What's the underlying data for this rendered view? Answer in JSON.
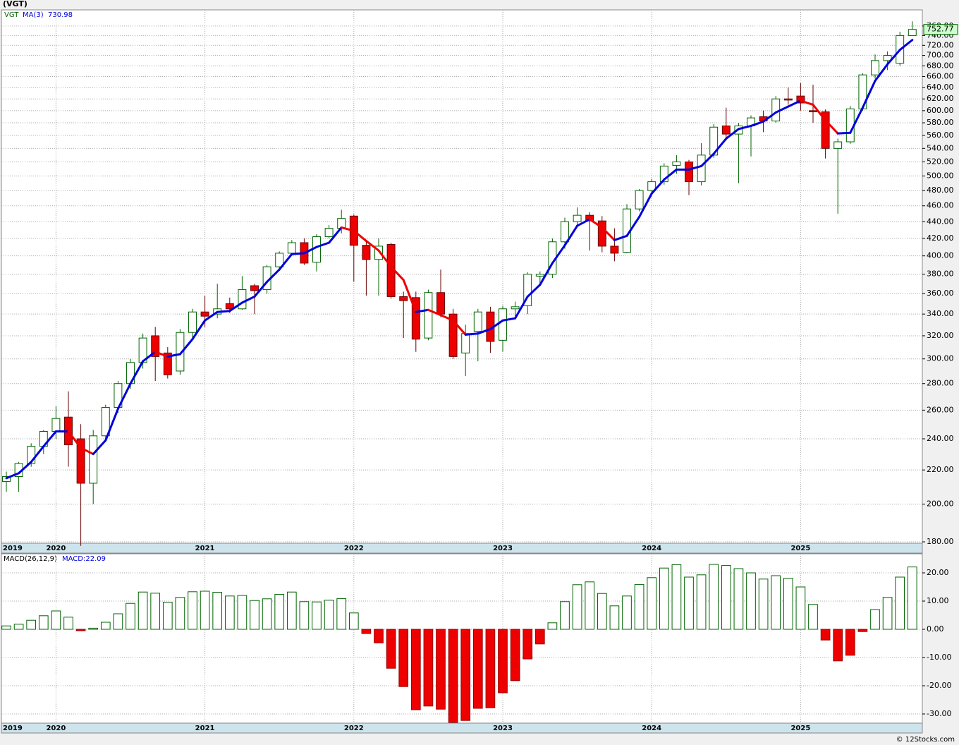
{
  "footer": "© 12Stocks.com",
  "chart_data": [
    {
      "type": "candlestick",
      "title": "(VGT)",
      "ticker": "VGT",
      "log_scale": true,
      "grid": true,
      "up_color": "#006400",
      "down_color": "#ee0000",
      "categories": [
        "2019",
        null,
        null,
        null,
        "2020",
        null,
        null,
        null,
        null,
        null,
        null,
        null,
        null,
        null,
        null,
        null,
        "2021",
        null,
        null,
        null,
        null,
        null,
        null,
        null,
        null,
        null,
        null,
        null,
        "2022",
        null,
        null,
        null,
        null,
        null,
        null,
        null,
        null,
        null,
        null,
        null,
        "2023",
        null,
        null,
        null,
        null,
        null,
        null,
        null,
        null,
        null,
        null,
        null,
        "2024",
        null,
        null,
        null,
        null,
        null,
        null,
        null,
        null,
        null,
        null,
        null,
        "2025",
        null,
        null,
        null,
        null,
        null,
        null,
        null,
        null,
        null
      ],
      "open": [
        213,
        216,
        224,
        235,
        245,
        255,
        240,
        212,
        242,
        262,
        280,
        297,
        320,
        305,
        290,
        323,
        342,
        340,
        350,
        345,
        368,
        364,
        388,
        403,
        415,
        393,
        422,
        432,
        447,
        412,
        396,
        413,
        357,
        356,
        318,
        361,
        340,
        305,
        324,
        342,
        316,
        345,
        348,
        378,
        380,
        416,
        440,
        448,
        441,
        411,
        404,
        456,
        480,
        492,
        515,
        520,
        492,
        530,
        575,
        562,
        575,
        590,
        583,
        620,
        625,
        600,
        598,
        540,
        550,
        603,
        663,
        690,
        685,
        740
      ],
      "high": [
        219,
        225,
        237,
        246,
        263,
        274,
        250,
        246,
        264,
        282,
        300,
        322,
        328,
        310,
        326,
        345,
        358,
        370,
        356,
        378,
        370,
        390,
        405,
        418,
        420,
        425,
        436,
        455,
        449,
        418,
        420,
        415,
        362,
        362,
        364,
        385,
        345,
        330,
        345,
        347,
        348,
        352,
        382,
        383,
        420,
        445,
        458,
        452,
        447,
        432,
        462,
        482,
        496,
        518,
        530,
        523,
        548,
        578,
        605,
        580,
        592,
        600,
        625,
        640,
        648,
        645,
        602,
        555,
        608,
        666,
        702,
        708,
        748,
        770
      ],
      "low": [
        207,
        207,
        222,
        230,
        240,
        222,
        178,
        200,
        238,
        258,
        276,
        292,
        282,
        284,
        287,
        318,
        328,
        336,
        341,
        344,
        340,
        360,
        384,
        400,
        390,
        383,
        420,
        426,
        372,
        358,
        358,
        355,
        318,
        306,
        316,
        337,
        300,
        286,
        298,
        305,
        306,
        338,
        340,
        370,
        376,
        408,
        434,
        406,
        404,
        394,
        403,
        453,
        476,
        488,
        503,
        474,
        487,
        526,
        552,
        490,
        528,
        565,
        580,
        610,
        600,
        580,
        525,
        450,
        547,
        600,
        656,
        672,
        680,
        740
      ],
      "close": [
        216,
        224,
        235,
        245,
        254,
        236,
        212,
        242,
        262,
        280,
        297,
        318,
        302,
        287,
        323,
        342,
        338,
        345,
        345,
        364,
        363,
        388,
        403,
        415,
        392,
        422,
        432,
        444,
        412,
        396,
        411,
        357,
        353,
        317,
        361,
        340,
        302,
        322,
        342,
        315,
        345,
        347,
        380,
        380,
        416,
        440,
        448,
        441,
        411,
        403,
        456,
        480,
        492,
        514,
        520,
        492,
        530,
        573,
        562,
        575,
        588,
        583,
        620,
        618,
        613,
        598,
        540,
        550,
        603,
        663,
        690,
        700,
        740,
        752.77
      ],
      "ma": {
        "name": "MA(3)",
        "up_color": "#0000dd",
        "down_color": "#ee0000",
        "values": [
          215,
          218,
          225,
          235,
          245,
          245,
          234,
          230,
          239,
          261,
          280,
          298,
          306,
          302,
          304,
          317,
          334,
          342,
          343,
          351,
          357,
          372,
          385,
          402,
          403,
          410,
          415,
          433,
          429,
          417,
          406,
          388,
          374,
          342,
          344,
          339,
          334,
          321,
          322,
          326,
          334,
          336,
          357,
          369,
          392,
          412,
          435,
          443,
          433,
          418,
          423,
          446,
          476,
          495,
          509,
          509,
          514,
          532,
          555,
          570,
          575,
          582,
          597,
          607,
          617,
          610,
          584,
          563,
          564,
          605,
          652,
          683,
          711,
          730.98
        ]
      },
      "ylim": [
        179.3,
        795
      ],
      "yticks": [
        {
          "value": 180,
          "label": "180.00"
        },
        {
          "value": 200,
          "label": "200.00"
        },
        {
          "value": 220,
          "label": "220.00"
        },
        {
          "value": 240,
          "label": "240.00"
        },
        {
          "value": 260,
          "label": "260.00"
        },
        {
          "value": 280,
          "label": "280.00"
        },
        {
          "value": 300,
          "label": "300.00"
        },
        {
          "value": 320,
          "label": "320.00"
        },
        {
          "value": 340,
          "label": "340.00"
        },
        {
          "value": 360,
          "label": "360.00"
        },
        {
          "value": 380,
          "label": "380.00"
        },
        {
          "value": 400,
          "label": "400.00"
        },
        {
          "value": 420,
          "label": "420.00"
        },
        {
          "value": 440,
          "label": "440.00"
        },
        {
          "value": 460,
          "label": "460.00"
        },
        {
          "value": 480,
          "label": "480.00"
        },
        {
          "value": 500,
          "label": "500.00"
        },
        {
          "value": 520,
          "label": "520.00"
        },
        {
          "value": 540,
          "label": "540.00"
        },
        {
          "value": 560,
          "label": "560.00"
        },
        {
          "value": 580,
          "label": "580.00"
        },
        {
          "value": 600,
          "label": "600.00"
        },
        {
          "value": 620,
          "label": "620.00"
        },
        {
          "value": 640,
          "label": "640.00"
        },
        {
          "value": 660,
          "label": "660.00"
        },
        {
          "value": 680,
          "label": "680.00"
        },
        {
          "value": 700,
          "label": "700.00"
        },
        {
          "value": 720,
          "label": "720.00"
        },
        {
          "value": 740,
          "label": "740.00"
        },
        {
          "value": 760,
          "label": "760.00"
        }
      ]
    },
    {
      "type": "bar",
      "name": "MACD(26,12,9)",
      "value_prefix": "MACD:",
      "grid": true,
      "up_color": "#006400",
      "down_color": "#ee0000",
      "categories": [
        "2019",
        null,
        null,
        null,
        "2020",
        null,
        null,
        null,
        null,
        null,
        null,
        null,
        null,
        null,
        null,
        null,
        "2021",
        null,
        null,
        null,
        null,
        null,
        null,
        null,
        null,
        null,
        null,
        null,
        "2022",
        null,
        null,
        null,
        null,
        null,
        null,
        null,
        null,
        null,
        null,
        null,
        "2023",
        null,
        null,
        null,
        null,
        null,
        null,
        null,
        null,
        null,
        null,
        null,
        "2024",
        null,
        null,
        null,
        null,
        null,
        null,
        null,
        null,
        null,
        null,
        null,
        "2025",
        null,
        null,
        null,
        null,
        null,
        null,
        null,
        null,
        null
      ],
      "values": [
        1.2,
        1.8,
        3.2,
        4.8,
        6.5,
        4.3,
        -0.5,
        0.4,
        2.5,
        5.5,
        9.2,
        13.2,
        12.8,
        9.6,
        11.3,
        13.3,
        13.5,
        13.1,
        11.8,
        12.0,
        10.2,
        10.8,
        12.4,
        13.2,
        9.8,
        9.7,
        10.3,
        10.9,
        5.8,
        -1.5,
        -4.8,
        -13.8,
        -20.3,
        -28.5,
        -27.2,
        -28.3,
        -33,
        -32.3,
        -28,
        -27.8,
        -22.5,
        -18.2,
        -10.5,
        -5.2,
        2.3,
        9.8,
        15.8,
        16.8,
        12.7,
        8.3,
        11.8,
        15.9,
        18.3,
        21.7,
        22.9,
        18.5,
        19.3,
        23.0,
        22.6,
        21.5,
        20.0,
        17.8,
        19.0,
        18.1,
        15.0,
        8.8,
        -3.8,
        -11.2,
        -9.2,
        -0.8,
        7.0,
        11.3,
        18.5,
        22.09
      ],
      "ylim": [
        -33.25,
        26.75
      ],
      "yticks": [
        {
          "value": -30,
          "label": "-30.00"
        },
        {
          "value": -20,
          "label": "-20.00"
        },
        {
          "value": -10,
          "label": "-10.00"
        },
        {
          "value": 0,
          "label": "0.00"
        },
        {
          "value": 10,
          "label": "10.00"
        },
        {
          "value": 20,
          "label": "20.00"
        }
      ]
    }
  ]
}
